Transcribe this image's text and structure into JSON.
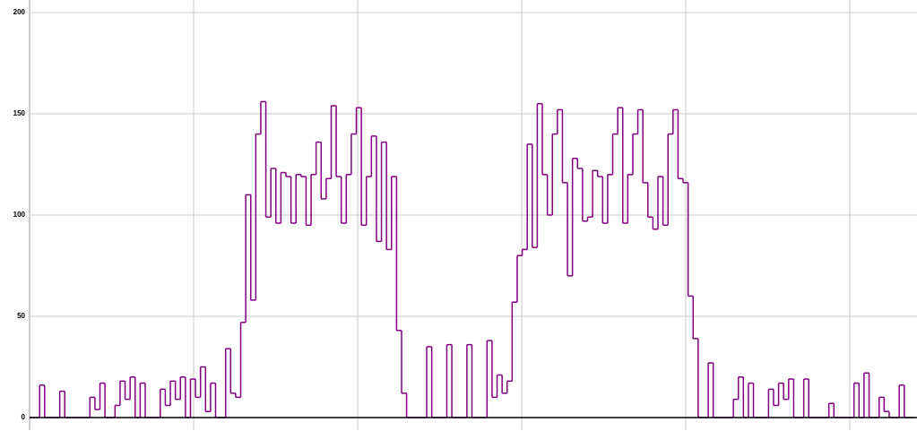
{
  "chart_data": {
    "type": "step",
    "color": "#800080",
    "ylim": [
      0,
      200
    ],
    "yticks": [
      0,
      50,
      100,
      150,
      200
    ],
    "grid": true,
    "values": [
      0,
      0,
      16,
      0,
      0,
      0,
      13,
      0,
      0,
      0,
      0,
      0,
      10,
      4,
      17,
      0,
      0,
      6,
      18,
      9,
      20,
      0,
      17,
      0,
      0,
      0,
      14,
      6,
      18,
      9,
      20,
      0,
      19,
      10,
      25,
      3,
      17,
      0,
      0,
      34,
      12,
      10,
      47,
      110,
      58,
      140,
      156,
      99,
      123,
      96,
      121,
      119,
      96,
      120,
      119,
      95,
      120,
      136,
      108,
      118,
      154,
      119,
      96,
      120,
      140,
      153,
      95,
      119,
      139,
      87,
      136,
      83,
      119,
      43,
      12,
      0,
      0,
      0,
      0,
      35,
      0,
      0,
      0,
      36,
      0,
      0,
      0,
      36,
      0,
      0,
      0,
      38,
      10,
      21,
      12,
      18,
      57,
      80,
      83,
      135,
      84,
      155,
      120,
      100,
      140,
      152,
      116,
      70,
      128,
      123,
      97,
      99,
      122,
      119,
      96,
      120,
      140,
      153,
      96,
      120,
      140,
      152,
      116,
      99,
      93,
      119,
      95,
      140,
      152,
      118,
      116,
      60,
      39,
      0,
      0,
      27,
      0,
      0,
      0,
      0,
      9,
      20,
      0,
      17,
      0,
      0,
      0,
      14,
      6,
      17,
      9,
      19,
      0,
      0,
      19,
      0,
      0,
      0,
      0,
      7,
      0,
      0,
      0,
      0,
      17,
      0,
      22,
      0,
      0,
      10,
      3,
      0,
      0,
      16,
      0,
      0
    ]
  }
}
